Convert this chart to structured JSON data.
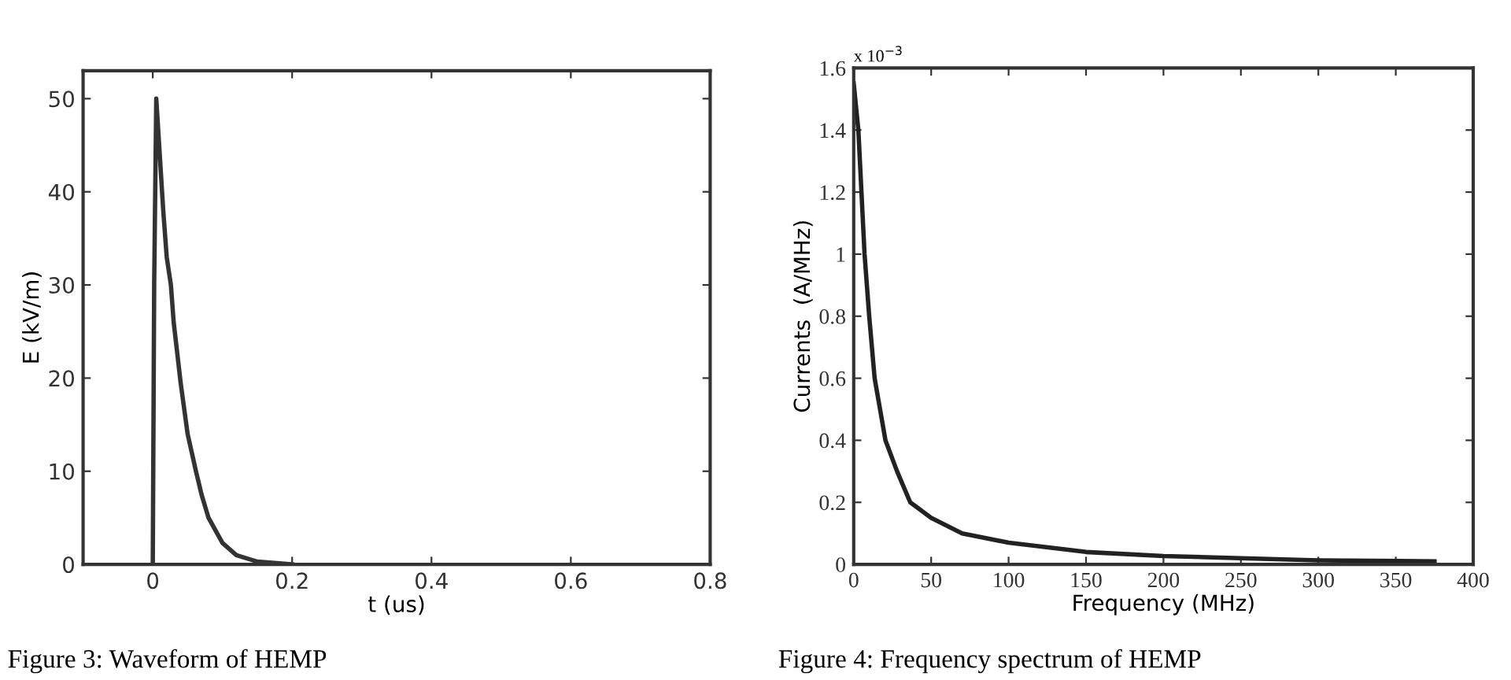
{
  "chart_data": [
    {
      "type": "line",
      "xlabel": "t (us)",
      "ylabel": "E (kV/m)",
      "x": [
        0,
        0.002,
        0.005,
        0.01,
        0.015,
        0.02,
        0.026,
        0.03,
        0.04,
        0.05,
        0.062,
        0.07,
        0.08,
        0.1,
        0.12,
        0.15,
        0.2
      ],
      "series": [
        {
          "color": "#333333",
          "values": [
            0,
            30,
            50,
            44,
            38,
            33,
            30,
            26,
            19.5,
            14,
            10,
            7.5,
            5,
            2.3,
            1,
            0.3,
            0
          ]
        }
      ],
      "xlim": [
        -0.1,
        0.8
      ],
      "ylim": [
        0,
        53
      ],
      "xticks": [
        0,
        0.2,
        0.4,
        0.6,
        0.8
      ],
      "yticks": [
        0,
        10,
        20,
        30,
        40,
        50
      ],
      "annotations": [
        "Figure 3: Waveform of HEMP"
      ]
    },
    {
      "type": "line",
      "xlabel": "Frequency (MHz)",
      "ylabel": "Currents  (A/MHz)",
      "x": [
        0,
        3,
        7,
        10,
        13.5,
        20.5,
        28,
        36.5,
        50,
        70,
        100,
        150,
        200,
        250,
        300,
        375
      ],
      "series": [
        {
          "color": "#222222",
          "values": [
            1.55,
            1.4,
            1.0,
            0.8,
            0.6,
            0.4,
            0.3,
            0.2,
            0.15,
            0.1,
            0.07,
            0.04,
            0.027,
            0.02,
            0.013,
            0.01
          ]
        }
      ],
      "xlim": [
        0,
        400
      ],
      "ylim": [
        0,
        1.6
      ],
      "xticks": [
        0,
        50,
        100,
        150,
        200,
        250,
        300,
        350,
        400
      ],
      "yticks": [
        0,
        0.2,
        0.4,
        0.6,
        0.8,
        1,
        1.2,
        1.4,
        1.6
      ],
      "annotations": [
        "x 10$^{−3}$",
        "Figure 4: Frequency spectrum of HEMP"
      ]
    }
  ]
}
